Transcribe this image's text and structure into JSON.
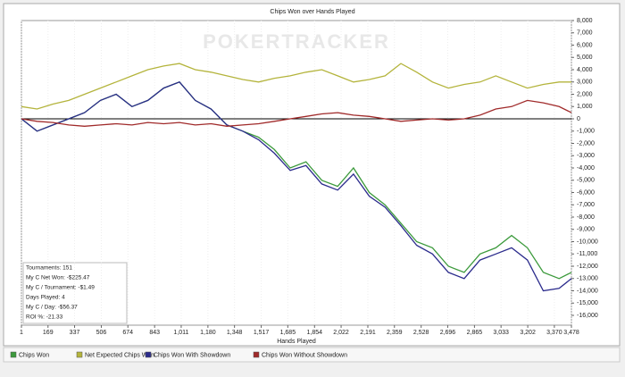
{
  "chart_data": {
    "type": "line",
    "title": "Chips Won over Hands Played",
    "x_label": "Hands Played",
    "watermark": "POKERTRACKER",
    "annotations": [
      "Tournaments: 151",
      "My C Net Won: -$225.47",
      "My C / Tournament: -$1.49",
      "Days Played: 4",
      "My C / Day: -$56.37",
      "ROI %: -21.33"
    ],
    "x": [
      1,
      100,
      200,
      300,
      400,
      500,
      600,
      700,
      800,
      900,
      1000,
      1100,
      1200,
      1300,
      1400,
      1500,
      1600,
      1700,
      1800,
      1900,
      2000,
      2100,
      2200,
      2300,
      2400,
      2500,
      2600,
      2700,
      2800,
      2900,
      3000,
      3100,
      3200,
      3300,
      3400,
      3478
    ],
    "xlim": [
      1,
      3478
    ],
    "xticks": [
      1,
      169,
      337,
      506,
      674,
      843,
      {
        "value": 1011,
        "label": "1,011"
      },
      {
        "value": 1180,
        "label": "1,180"
      },
      {
        "value": 1348,
        "label": "1,348"
      },
      {
        "value": 1517,
        "label": "1,517"
      },
      {
        "value": 1685,
        "label": "1,685"
      },
      {
        "value": 1854,
        "label": "1,854"
      },
      {
        "value": 2022,
        "label": "2,022"
      },
      {
        "value": 2191,
        "label": "2,191"
      },
      {
        "value": 2359,
        "label": "2,359"
      },
      {
        "value": 2528,
        "label": "2,528"
      },
      {
        "value": 2696,
        "label": "2,696"
      },
      {
        "value": 2865,
        "label": "2,865"
      },
      {
        "value": 3033,
        "label": "3,033"
      },
      {
        "value": 3202,
        "label": "3,202"
      },
      {
        "value": 3370,
        "label": "3,370"
      },
      {
        "value": 3478,
        "label": "3,478"
      }
    ],
    "ylim": [
      -16800,
      8000
    ],
    "yticks": [
      {
        "value": 8000,
        "label": "8,000"
      },
      {
        "value": 7000,
        "label": "7,000"
      },
      {
        "value": 6000,
        "label": "6,000"
      },
      {
        "value": 5000,
        "label": "5,000"
      },
      {
        "value": 4000,
        "label": "4,000"
      },
      {
        "value": 3000,
        "label": "3,000"
      },
      {
        "value": 2000,
        "label": "2,000"
      },
      {
        "value": 1000,
        "label": "1,000"
      },
      0,
      {
        "value": -1000,
        "label": "-1,000"
      },
      {
        "value": -2000,
        "label": "-2,000"
      },
      {
        "value": -3000,
        "label": "-3,000"
      },
      {
        "value": -4000,
        "label": "-4,000"
      },
      {
        "value": -5000,
        "label": "-5,000"
      },
      {
        "value": -6000,
        "label": "-6,000"
      },
      {
        "value": -7000,
        "label": "-7,000"
      },
      {
        "value": -8000,
        "label": "-8,000"
      },
      {
        "value": -9000,
        "label": "-9,000"
      },
      {
        "value": -10000,
        "label": "-10,000"
      },
      {
        "value": -11000,
        "label": "-11,000"
      },
      {
        "value": -12000,
        "label": "-12,000"
      },
      {
        "value": -13000,
        "label": "-13,000"
      },
      {
        "value": -14000,
        "label": "-14,000"
      },
      {
        "value": -15000,
        "label": "-15,000"
      },
      {
        "value": -16000,
        "label": "-16,000"
      }
    ],
    "series": [
      {
        "name": "Chips Won",
        "color": "#3c9a3c",
        "values": [
          0,
          -1000,
          -500,
          0,
          500,
          1500,
          2000,
          1000,
          1500,
          2500,
          3000,
          1500,
          800,
          -500,
          -1000,
          -1500,
          -2500,
          -4000,
          -3500,
          -5000,
          -5500,
          -4000,
          -6000,
          -7000,
          -8500,
          -10000,
          -10500,
          -12000,
          -12500,
          -11000,
          -10500,
          -9500,
          -10500,
          -12500,
          -13000,
          -12500
        ]
      },
      {
        "name": "Net Expected Chips Won",
        "color": "#b4b43c",
        "values": [
          1000,
          800,
          1200,
          1500,
          2000,
          2500,
          3000,
          3500,
          4000,
          4300,
          4500,
          4000,
          3800,
          3500,
          3200,
          3000,
          3300,
          3500,
          3800,
          4000,
          3500,
          3000,
          3200,
          3500,
          4500,
          3800,
          3000,
          2500,
          2800,
          3000,
          3500,
          3000,
          2500,
          2800,
          3000,
          3000
        ]
      },
      {
        "name": "Chips Won With Showdown",
        "color": "#2b2b8c",
        "values": [
          0,
          -1000,
          -500,
          0,
          500,
          1500,
          2000,
          1000,
          1500,
          2500,
          3000,
          1500,
          800,
          -500,
          -1000,
          -1700,
          -2800,
          -4200,
          -3800,
          -5300,
          -5800,
          -4500,
          -6300,
          -7200,
          -8700,
          -10300,
          -11000,
          -12500,
          -13000,
          -11500,
          -11000,
          -10500,
          -11500,
          -14000,
          -13800,
          -13000
        ]
      },
      {
        "name": "Chips Won Without Showdown",
        "color": "#a02a2a",
        "values": [
          0,
          -200,
          -300,
          -500,
          -600,
          -500,
          -400,
          -500,
          -300,
          -400,
          -300,
          -500,
          -400,
          -600,
          -500,
          -400,
          -200,
          0,
          200,
          400,
          500,
          300,
          200,
          0,
          -200,
          -100,
          0,
          -100,
          0,
          300,
          800,
          1000,
          1500,
          1300,
          1000,
          500
        ]
      }
    ]
  }
}
